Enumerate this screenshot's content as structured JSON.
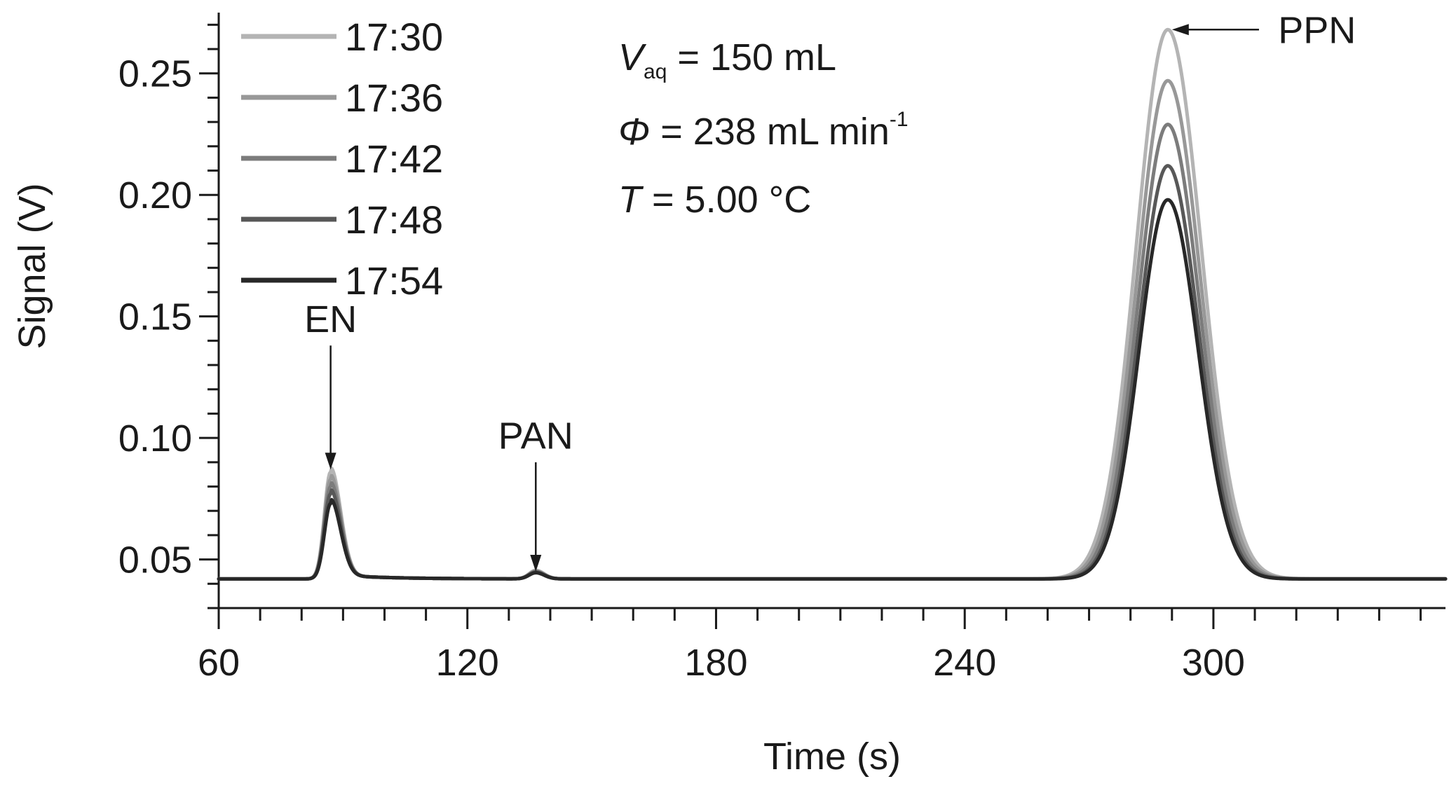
{
  "chart_data": {
    "type": "line",
    "xlabel": "Time (s)",
    "ylabel": "Signal (V)",
    "xlim": [
      60,
      356
    ],
    "ylim": [
      0.03,
      0.275
    ],
    "x_ticks": [
      60,
      120,
      180,
      240,
      300
    ],
    "x_minor_step": 10,
    "y_ticks": [
      0.05,
      0.1,
      0.15,
      0.2,
      0.25
    ],
    "y_tick_labels": [
      "0.05",
      "0.10",
      "0.15",
      "0.20",
      "0.25"
    ],
    "y_minor_step": 0.01,
    "grid": false,
    "legend_position": "top-left",
    "conditions": {
      "line1": {
        "var": "V",
        "sub": "aq",
        "rest": " = 150 mL"
      },
      "line2": {
        "var": "Φ",
        "rest": " = 238 mL min",
        "sup": "-1"
      },
      "line3": {
        "var": "T",
        "rest": " = 5.00 °C"
      }
    },
    "baseline": 0.042,
    "peaks": [
      {
        "label": "EN",
        "x": 87,
        "label_x": 87,
        "label_y": 0.149,
        "arrow_to_y": 0.087,
        "arrow_from_y": 0.138
      },
      {
        "label": "PAN",
        "x": 136.5,
        "label_x": 136.5,
        "label_y": 0.101,
        "arrow_to_y": 0.045,
        "arrow_from_y": 0.09
      },
      {
        "label": "PPN",
        "x": 289,
        "label_x": 325,
        "label_y": 0.268,
        "arrow_to_x": 290,
        "arrow_from_x": 311
      }
    ],
    "series": [
      {
        "name": "17:30",
        "color": "#b4b4b4",
        "en_peak": 0.086,
        "pan_peak": 0.0455,
        "ppn_peak": 0.268,
        "ppn_width": 7.6
      },
      {
        "name": "17:36",
        "color": "#989898",
        "en_peak": 0.083,
        "pan_peak": 0.0452,
        "ppn_peak": 0.247,
        "ppn_width": 7.4
      },
      {
        "name": "17:42",
        "color": "#7c7c7c",
        "en_peak": 0.08,
        "pan_peak": 0.045,
        "ppn_peak": 0.229,
        "ppn_width": 7.2
      },
      {
        "name": "17:48",
        "color": "#585858",
        "en_peak": 0.077,
        "pan_peak": 0.0448,
        "ppn_peak": 0.212,
        "ppn_width": 7.0
      },
      {
        "name": "17:54",
        "color": "#282828",
        "en_peak": 0.073,
        "pan_peak": 0.0445,
        "ppn_peak": 0.198,
        "ppn_width": 6.9
      }
    ]
  }
}
